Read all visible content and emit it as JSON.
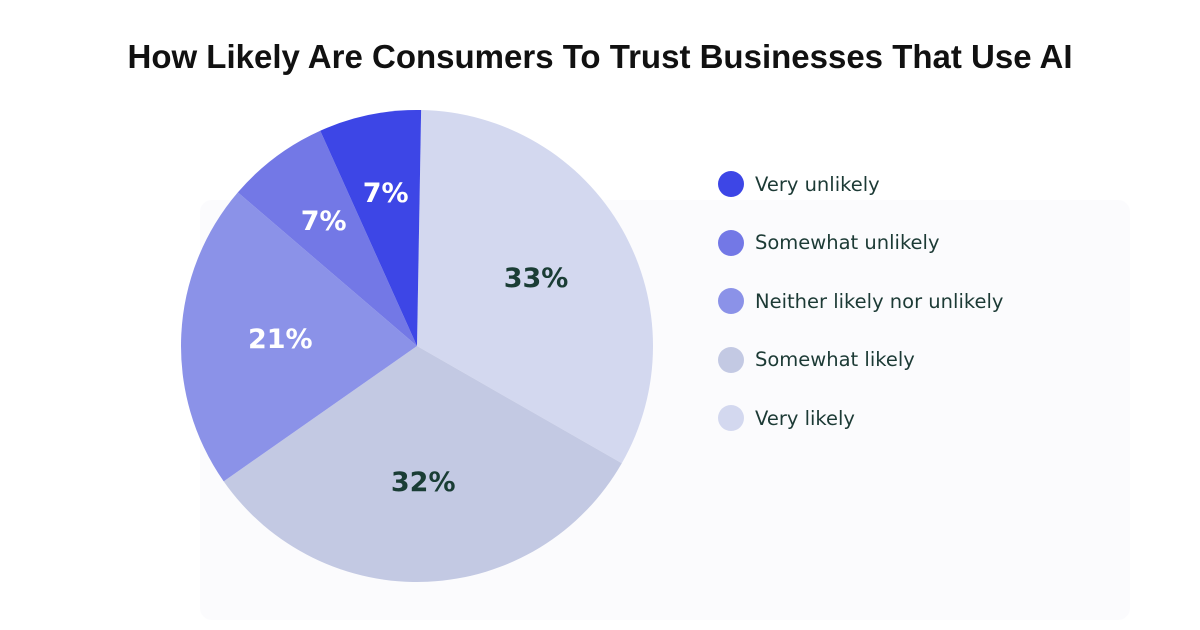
{
  "chart_data": {
    "type": "pie",
    "title": "How Likely Are Consumers To Trust Businesses That Use AI",
    "categories": [
      "Very unlikely",
      "Somewhat unlikely",
      "Neither likely nor unlikely",
      "Somewhat likely",
      "Very likely"
    ],
    "values": [
      7,
      7,
      21,
      32,
      33
    ],
    "labels": [
      "7%",
      "7%",
      "21%",
      "32%",
      "33%"
    ],
    "colors": [
      "#3d46e6",
      "#7378e6",
      "#8b92e8",
      "#c3c9e3",
      "#d3d8ef"
    ],
    "label_colors": [
      "#ffffff",
      "#ffffff",
      "#ffffff",
      "#1a3d35",
      "#1a3d35"
    ],
    "legend_position": "right",
    "start_angle_deg": 1,
    "direction": "clockwise",
    "order": [
      4,
      3,
      2,
      1,
      0
    ]
  }
}
